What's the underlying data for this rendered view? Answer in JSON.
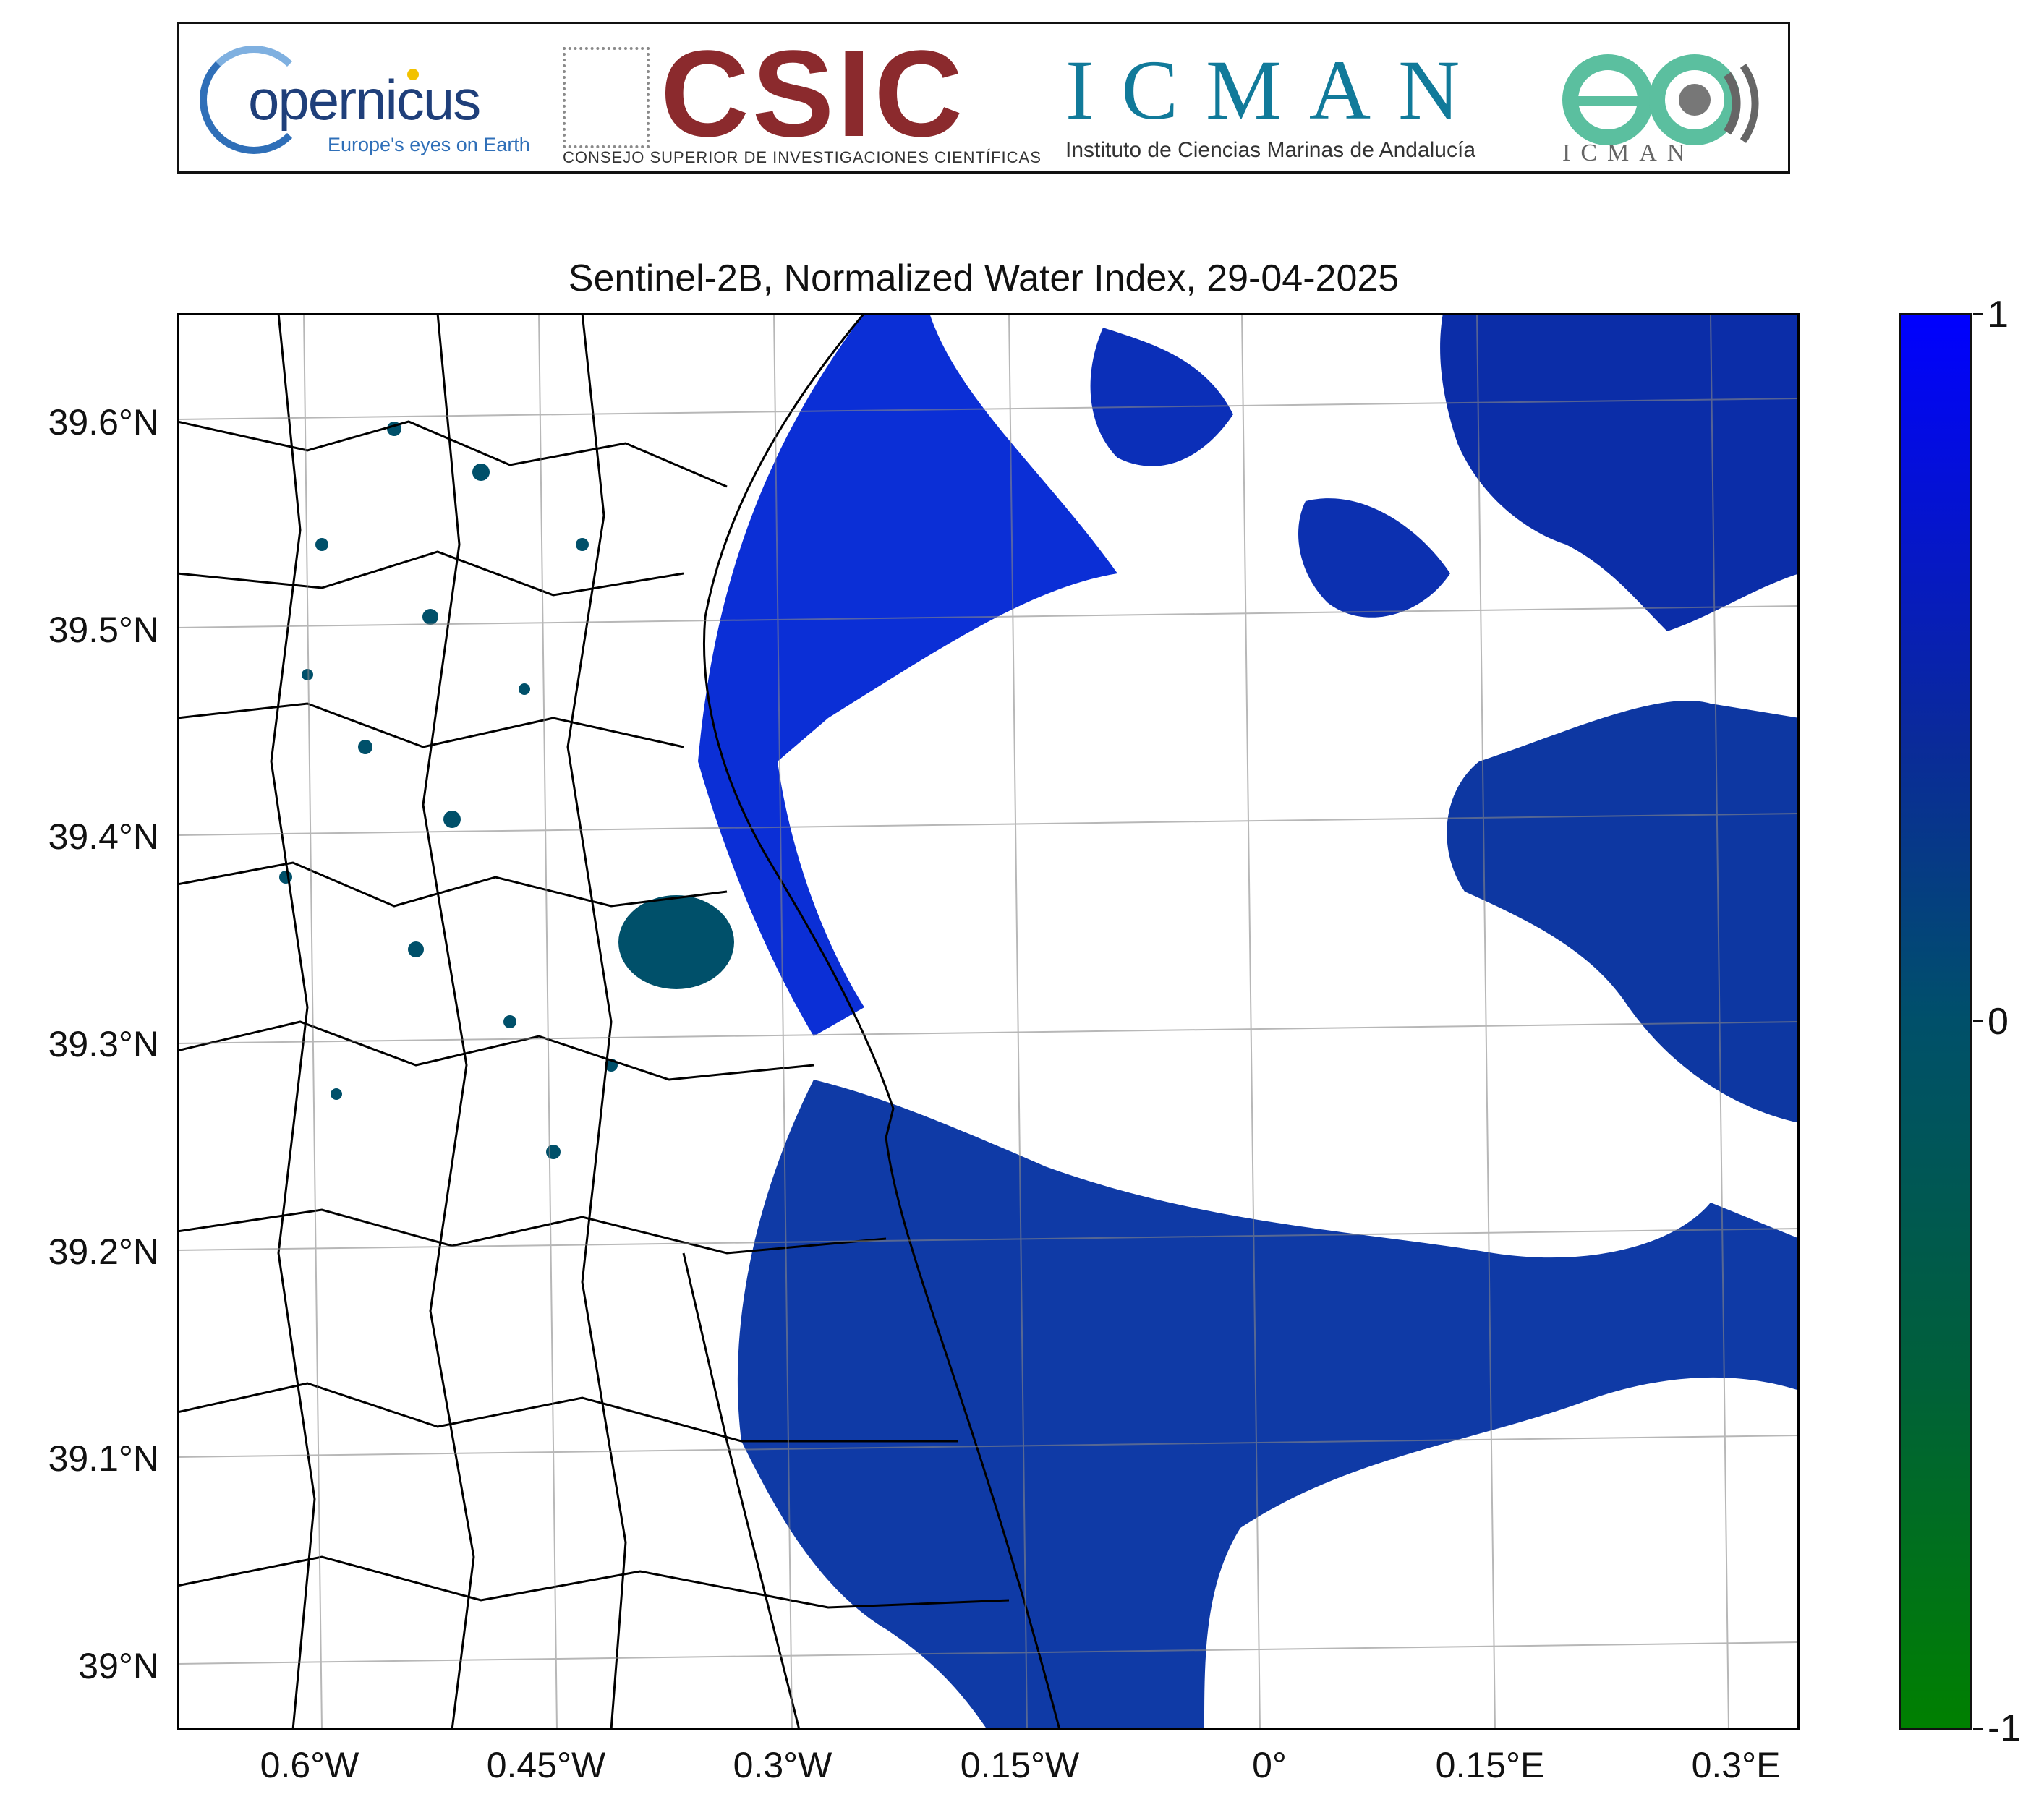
{
  "banner": {
    "copernicus": {
      "name": "opernicus",
      "tagline": "Europe's eyes on Earth"
    },
    "csic": {
      "name": "CSIC",
      "subtitle": "CONSEJO SUPERIOR DE INVESTIGACIONES CIENTÍFICAS"
    },
    "icman": {
      "name": "ICMAN",
      "subtitle": "Instituto de Ciencias Marinas de Andalucía"
    },
    "eo": {
      "subtitle": "ICMAN"
    }
  },
  "map": {
    "title": "Sentinel-2B, Normalized Water Index, 29-04-2025",
    "y_ticks": [
      "39.6°N",
      "39.5°N",
      "39.4°N",
      "39.3°N",
      "39.2°N",
      "39.1°N",
      "39°N"
    ],
    "x_ticks": [
      "0.6°W",
      "0.45°W",
      "0.3°W",
      "0.15°W",
      "0°",
      "0.15°E",
      "0.3°E"
    ]
  },
  "colorbar": {
    "labels": [
      "1",
      "0",
      "-1"
    ],
    "colors": {
      "max": "#0000ff",
      "mid": "#00506a",
      "min": "#008000"
    }
  },
  "chart_data": {
    "type": "heatmap",
    "title": "Sentinel-2B, Normalized Water Index, 29-04-2025",
    "xlabel": "",
    "ylabel": "",
    "lon_ticks": [
      -0.6,
      -0.45,
      -0.3,
      -0.15,
      0,
      0.15,
      0.3
    ],
    "lat_ticks": [
      39.6,
      39.5,
      39.4,
      39.3,
      39.2,
      39.1,
      39.0
    ],
    "color_range": [
      -1,
      1
    ],
    "grid": true
  }
}
